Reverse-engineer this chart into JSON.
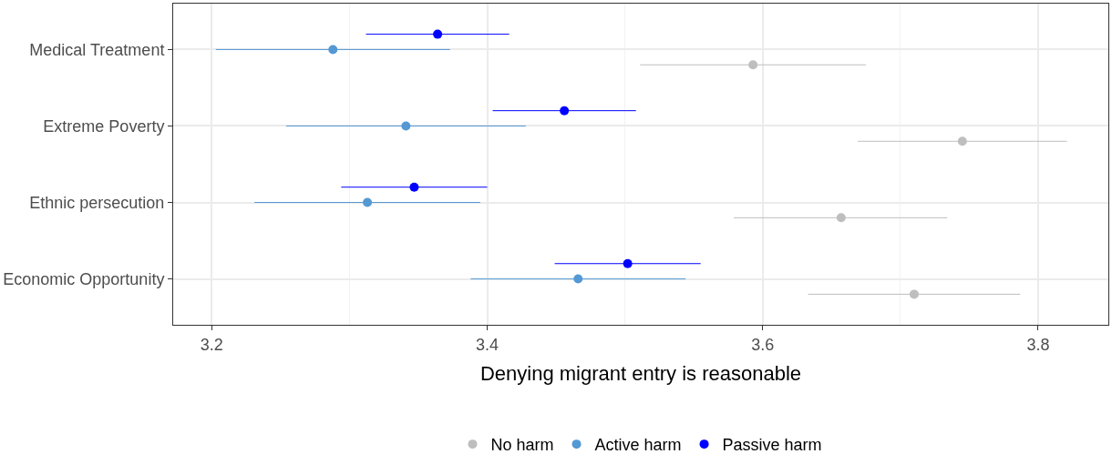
{
  "chart_data": {
    "type": "scatter",
    "orientation": "horizontal",
    "xlabel": "Denying migrant entry is reasonable",
    "categories": [
      "Medical Treatment",
      "Extreme Poverty",
      "Ethnic persecution",
      "Economic Opportunity"
    ],
    "xlim": [
      3.172,
      3.851
    ],
    "xticks": [
      3.2,
      3.4,
      3.6,
      3.8
    ],
    "grid": true,
    "legend": "bottom",
    "marker": "circle",
    "series": [
      {
        "name": "No harm",
        "color": "#bebebe",
        "values": [
          3.593,
          3.745,
          3.657,
          3.71
        ],
        "errors": [
          [
            3.511,
            3.675
          ],
          [
            3.669,
            3.821
          ],
          [
            3.579,
            3.734
          ],
          [
            3.633,
            3.787
          ]
        ]
      },
      {
        "name": "Active harm",
        "color": "#5499d4",
        "values": [
          3.288,
          3.341,
          3.313,
          3.466
        ],
        "errors": [
          [
            3.203,
            3.373
          ],
          [
            3.254,
            3.428
          ],
          [
            3.231,
            3.395
          ],
          [
            3.388,
            3.544
          ]
        ]
      },
      {
        "name": "Passive harm",
        "color": "#0000ff",
        "values": [
          3.364,
          3.456,
          3.347,
          3.502
        ],
        "errors": [
          [
            3.312,
            3.416
          ],
          [
            3.404,
            3.508
          ],
          [
            3.294,
            3.4
          ],
          [
            3.449,
            3.555
          ]
        ]
      }
    ]
  }
}
